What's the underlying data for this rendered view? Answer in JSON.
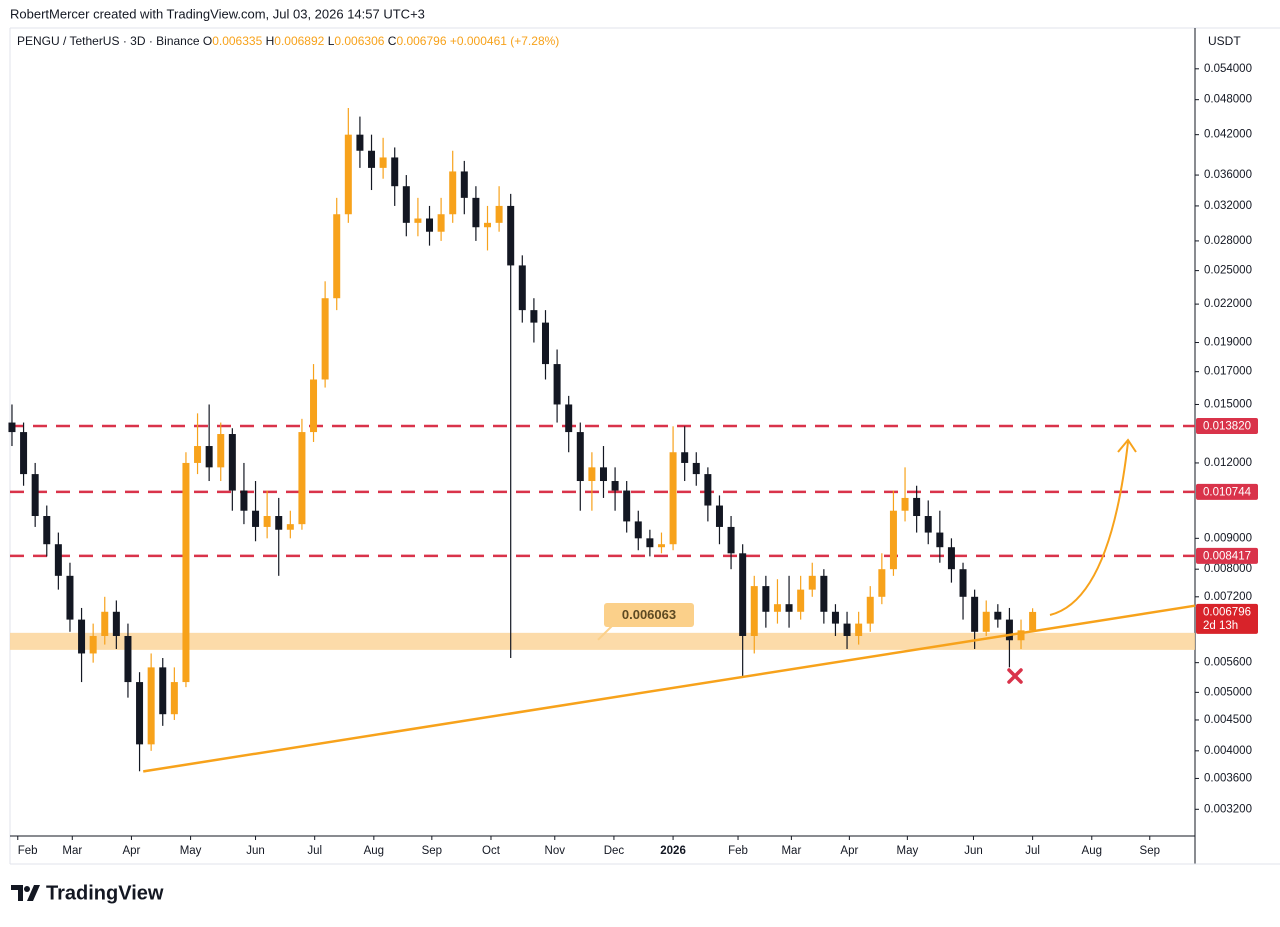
{
  "header": {
    "credit": "RobertMercer created with TradingView.com, Jul 03, 2026 14:57 UTC+3"
  },
  "chart_data": {
    "type": "candlestick",
    "symbol": "PENGU / TetherUS · 3D · Binance",
    "ohlc_labels": [
      "O",
      "H",
      "L",
      "C"
    ],
    "change": "+0.000461 (+7.28%)",
    "currency": "USDT",
    "countdown": "2d 13h",
    "log_scale": true,
    "grid": false,
    "up_color": "#f7a21b",
    "down_color": "#131722",
    "open": [
      0.014,
      0.0135,
      0.0115,
      0.0098,
      0.0088,
      0.0078,
      0.0066,
      0.0058,
      0.0062,
      0.0068,
      0.0062,
      0.0052,
      0.0041,
      0.0055,
      0.0046,
      0.0052,
      0.012,
      0.0128,
      0.0118,
      0.0134,
      0.0108,
      0.01,
      0.0094,
      0.0098,
      0.0093,
      0.0095,
      0.0135,
      0.0165,
      0.0225,
      0.031,
      0.042,
      0.0395,
      0.037,
      0.0385,
      0.0345,
      0.03,
      0.0305,
      0.029,
      0.031,
      0.0365,
      0.033,
      0.0295,
      0.03,
      0.032,
      0.0255,
      0.0215,
      0.0205,
      0.0175,
      0.015,
      0.0135,
      0.0112,
      0.0118,
      0.0112,
      0.0108,
      0.0096,
      0.009,
      0.0087,
      0.0088,
      0.0125,
      0.012,
      0.0115,
      0.0102,
      0.0094,
      0.0085,
      0.0062,
      0.0075,
      0.0068,
      0.007,
      0.0068,
      0.0074,
      0.0078,
      0.0068,
      0.0065,
      0.0062,
      0.0065,
      0.0072,
      0.008,
      0.01,
      0.0105,
      0.0098,
      0.0092,
      0.0087,
      0.008,
      0.0072,
      0.0063,
      0.0068,
      0.0066,
      0.0061,
      0.006335
    ],
    "high": [
      0.015,
      0.014,
      0.012,
      0.0102,
      0.0092,
      0.0082,
      0.0069,
      0.0065,
      0.0072,
      0.0071,
      0.0065,
      0.0054,
      0.0058,
      0.0057,
      0.0055,
      0.0125,
      0.0145,
      0.015,
      0.014,
      0.0137,
      0.012,
      0.0112,
      0.0108,
      0.0105,
      0.01,
      0.0142,
      0.0175,
      0.024,
      0.033,
      0.0465,
      0.045,
      0.042,
      0.0415,
      0.04,
      0.036,
      0.033,
      0.032,
      0.033,
      0.0395,
      0.038,
      0.0345,
      0.032,
      0.0345,
      0.0335,
      0.0265,
      0.0225,
      0.0215,
      0.0185,
      0.0155,
      0.014,
      0.0125,
      0.0128,
      0.0118,
      0.0112,
      0.01,
      0.0093,
      0.0092,
      0.0138,
      0.0138,
      0.0125,
      0.0118,
      0.0106,
      0.0098,
      0.0088,
      0.0078,
      0.0078,
      0.0077,
      0.0078,
      0.0078,
      0.0082,
      0.008,
      0.007,
      0.0068,
      0.0068,
      0.0075,
      0.0085,
      0.0108,
      0.0118,
      0.011,
      0.0104,
      0.01,
      0.009,
      0.0082,
      0.0074,
      0.0071,
      0.007,
      0.0069,
      0.0066,
      0.006892
    ],
    "low": [
      0.0128,
      0.011,
      0.0094,
      0.0084,
      0.0074,
      0.0063,
      0.0052,
      0.0056,
      0.006,
      0.0059,
      0.0049,
      0.0037,
      0.004,
      0.0044,
      0.0045,
      0.0051,
      0.0115,
      0.0112,
      0.0112,
      0.01,
      0.0095,
      0.0089,
      0.009,
      0.0078,
      0.009,
      0.0093,
      0.013,
      0.016,
      0.0215,
      0.03,
      0.037,
      0.034,
      0.0355,
      0.032,
      0.0285,
      0.0285,
      0.0275,
      0.028,
      0.03,
      0.031,
      0.028,
      0.027,
      0.029,
      0.0057,
      0.0205,
      0.019,
      0.0165,
      0.014,
      0.0125,
      0.01,
      0.01,
      0.0105,
      0.01,
      0.0092,
      0.0086,
      0.0084,
      0.0085,
      0.0086,
      0.0112,
      0.011,
      0.0096,
      0.0088,
      0.008,
      0.0053,
      0.0058,
      0.0064,
      0.0065,
      0.0064,
      0.0066,
      0.0072,
      0.0065,
      0.0062,
      0.0059,
      0.006,
      0.0063,
      0.007,
      0.0078,
      0.0096,
      0.0092,
      0.0088,
      0.0082,
      0.0076,
      0.0066,
      0.0059,
      0.0062,
      0.0064,
      0.0055,
      0.0059,
      0.006306
    ],
    "close": [
      0.0135,
      0.0115,
      0.0098,
      0.0088,
      0.0078,
      0.0066,
      0.0058,
      0.0062,
      0.0068,
      0.0062,
      0.0052,
      0.0041,
      0.0055,
      0.0046,
      0.0052,
      0.012,
      0.0128,
      0.0118,
      0.0134,
      0.0108,
      0.01,
      0.0094,
      0.0098,
      0.0093,
      0.0095,
      0.0135,
      0.0165,
      0.0225,
      0.031,
      0.042,
      0.0395,
      0.037,
      0.0385,
      0.0345,
      0.03,
      0.0305,
      0.029,
      0.031,
      0.0365,
      0.033,
      0.0295,
      0.03,
      0.032,
      0.0255,
      0.0215,
      0.0205,
      0.0175,
      0.015,
      0.0135,
      0.0112,
      0.0118,
      0.0112,
      0.0108,
      0.0096,
      0.009,
      0.0087,
      0.0088,
      0.0125,
      0.012,
      0.0115,
      0.0102,
      0.0094,
      0.0085,
      0.0062,
      0.0075,
      0.0068,
      0.007,
      0.0068,
      0.0074,
      0.0078,
      0.0068,
      0.0065,
      0.0062,
      0.0065,
      0.0072,
      0.008,
      0.01,
      0.0105,
      0.0098,
      0.0092,
      0.0087,
      0.008,
      0.0072,
      0.0063,
      0.0068,
      0.0066,
      0.0061,
      0.006335,
      0.006796
    ],
    "xlim": [
      -0.17,
      102
    ],
    "xticks": [
      {
        "value": 0.5,
        "label": "Feb"
      },
      {
        "value": 5.2,
        "label": "Mar"
      },
      {
        "value": 10.3,
        "label": "Apr"
      },
      {
        "value": 15.4,
        "label": "May"
      },
      {
        "value": 21,
        "label": "Jun"
      },
      {
        "value": 26.1,
        "label": "Jul"
      },
      {
        "value": 31.2,
        "label": "Aug"
      },
      {
        "value": 36.2,
        "label": "Sep"
      },
      {
        "value": 41.3,
        "label": "Oct"
      },
      {
        "value": 46.8,
        "label": "Nov"
      },
      {
        "value": 51.9,
        "label": "Dec"
      },
      {
        "value": 57,
        "label": "2026"
      },
      {
        "value": 62.6,
        "label": "Feb"
      },
      {
        "value": 67.2,
        "label": "Mar"
      },
      {
        "value": 72.2,
        "label": "Apr"
      },
      {
        "value": 77.2,
        "label": "May"
      },
      {
        "value": 82.9,
        "label": "Jun"
      },
      {
        "value": 88,
        "label": "Jul"
      },
      {
        "value": 93.1,
        "label": "Aug"
      },
      {
        "value": 98.1,
        "label": "Sep"
      }
    ],
    "ylim": [
      0.00289,
      0.0631
    ],
    "yticks": [
      {
        "value": 0.054,
        "label": "0.054000"
      },
      {
        "value": 0.048,
        "label": "0.048000"
      },
      {
        "value": 0.042,
        "label": "0.042000"
      },
      {
        "value": 0.036,
        "label": "0.036000"
      },
      {
        "value": 0.032,
        "label": "0.032000"
      },
      {
        "value": 0.028,
        "label": "0.028000"
      },
      {
        "value": 0.025,
        "label": "0.025000"
      },
      {
        "value": 0.022,
        "label": "0.022000"
      },
      {
        "value": 0.019,
        "label": "0.019000"
      },
      {
        "value": 0.017,
        "label": "0.017000"
      },
      {
        "value": 0.015,
        "label": "0.015000"
      },
      {
        "value": 0.012,
        "label": "0.012000"
      },
      {
        "value": 0.009,
        "label": "0.009000"
      },
      {
        "value": 0.008,
        "label": "0.008000"
      },
      {
        "value": 0.0072,
        "label": "0.007200"
      },
      {
        "value": 0.0056,
        "label": "0.005600"
      },
      {
        "value": 0.005,
        "label": "0.005000"
      },
      {
        "value": 0.0045,
        "label": "0.004500"
      },
      {
        "value": 0.004,
        "label": "0.004000"
      },
      {
        "value": 0.0036,
        "label": "0.003600"
      },
      {
        "value": 0.0032,
        "label": "0.003200"
      }
    ],
    "levels": [
      {
        "value": 0.01382,
        "label": "0.013820"
      },
      0.010744,
      0.008417
    ],
    "level_color": "#d9334a",
    "support_zone": [
      0.00588,
      0.006275
    ],
    "support_label": 0.006063,
    "trendline": {
      "x": [
        11.4,
        102
      ],
      "y": [
        0.0037,
        0.00696
      ]
    }
  },
  "footer": {
    "logo": "TradingView"
  }
}
